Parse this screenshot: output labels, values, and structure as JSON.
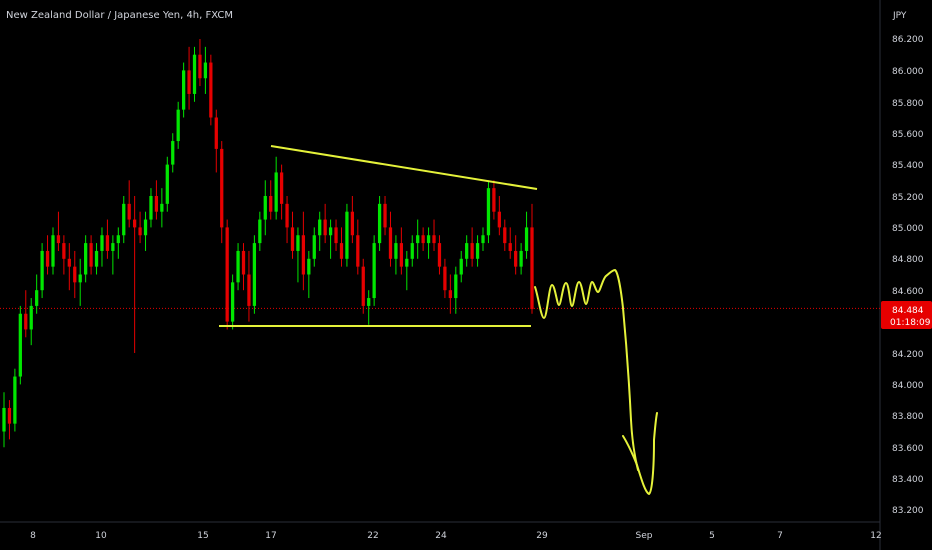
{
  "chart_data": {
    "type": "candlestick",
    "title": "New Zealand Dollar / Japanese Yen, 4h, FXCM",
    "currency": "JPY",
    "last_price": "84.484",
    "countdown": "01:18:09",
    "price_axis": {
      "ticks": [
        "86.200",
        "86.000",
        "85.800",
        "85.600",
        "85.400",
        "85.200",
        "85.000",
        "84.800",
        "84.600",
        "84.200",
        "84.000",
        "83.800",
        "83.600",
        "83.400",
        "83.200"
      ],
      "ylim": [
        83.12,
        86.4
      ]
    },
    "time_axis": {
      "ticks": [
        "8",
        "10",
        "15",
        "17",
        "22",
        "24",
        "29",
        "Sep",
        "5",
        "7",
        "12"
      ]
    },
    "colors": {
      "background": "#000000",
      "up": "#00e600",
      "down": "#e60000",
      "drawing": "#e5f23a",
      "price_tag": "#e60000",
      "axis_text": "#d1d4dc"
    },
    "bars_ohlc": [
      [
        83.7,
        83.95,
        83.6,
        83.85
      ],
      [
        83.85,
        83.9,
        83.65,
        83.75
      ],
      [
        83.75,
        84.1,
        83.7,
        84.05
      ],
      [
        84.05,
        84.5,
        84.0,
        84.45
      ],
      [
        84.45,
        84.6,
        84.3,
        84.35
      ],
      [
        84.35,
        84.55,
        84.25,
        84.5
      ],
      [
        84.5,
        84.7,
        84.45,
        84.6
      ],
      [
        84.6,
        84.9,
        84.55,
        84.85
      ],
      [
        84.85,
        84.95,
        84.7,
        84.75
      ],
      [
        84.75,
        85.0,
        84.7,
        84.95
      ],
      [
        84.95,
        85.1,
        84.85,
        84.9
      ],
      [
        84.9,
        84.95,
        84.7,
        84.8
      ],
      [
        84.8,
        84.9,
        84.6,
        84.75
      ],
      [
        84.75,
        84.85,
        84.55,
        84.65
      ],
      [
        84.65,
        84.8,
        84.5,
        84.7
      ],
      [
        84.7,
        84.95,
        84.65,
        84.9
      ],
      [
        84.9,
        84.95,
        84.7,
        84.75
      ],
      [
        84.75,
        84.9,
        84.7,
        84.85
      ],
      [
        84.85,
        85.0,
        84.75,
        84.95
      ],
      [
        84.95,
        85.05,
        84.8,
        84.85
      ],
      [
        84.85,
        84.95,
        84.7,
        84.9
      ],
      [
        84.9,
        85.0,
        84.8,
        84.95
      ],
      [
        84.95,
        85.2,
        84.9,
        85.15
      ],
      [
        85.15,
        85.3,
        85.0,
        85.05
      ],
      [
        85.05,
        85.2,
        84.2,
        85.0
      ],
      [
        85.0,
        85.1,
        84.9,
        84.95
      ],
      [
        84.95,
        85.1,
        84.85,
        85.05
      ],
      [
        85.05,
        85.25,
        85.0,
        85.2
      ],
      [
        85.2,
        85.3,
        85.05,
        85.1
      ],
      [
        85.1,
        85.25,
        85.0,
        85.15
      ],
      [
        85.15,
        85.45,
        85.1,
        85.4
      ],
      [
        85.4,
        85.6,
        85.35,
        85.55
      ],
      [
        85.55,
        85.8,
        85.5,
        85.75
      ],
      [
        85.75,
        86.05,
        85.7,
        86.0
      ],
      [
        86.0,
        86.15,
        85.75,
        85.85
      ],
      [
        85.85,
        86.15,
        85.8,
        86.1
      ],
      [
        86.1,
        86.2,
        85.9,
        85.95
      ],
      [
        85.95,
        86.15,
        85.85,
        86.05
      ],
      [
        86.05,
        86.1,
        85.65,
        85.7
      ],
      [
        85.7,
        85.75,
        85.35,
        85.5
      ],
      [
        85.5,
        85.55,
        84.9,
        85.0
      ],
      [
        85.0,
        85.05,
        84.35,
        84.4
      ],
      [
        84.4,
        84.7,
        84.35,
        84.65
      ],
      [
        84.65,
        84.9,
        84.6,
        84.85
      ],
      [
        84.85,
        84.9,
        84.6,
        84.7
      ],
      [
        84.7,
        84.85,
        84.4,
        84.5
      ],
      [
        84.5,
        84.95,
        84.45,
        84.9
      ],
      [
        84.9,
        85.1,
        84.85,
        85.05
      ],
      [
        85.05,
        85.3,
        84.95,
        85.2
      ],
      [
        85.2,
        85.3,
        85.05,
        85.1
      ],
      [
        85.1,
        85.45,
        85.05,
        85.35
      ],
      [
        85.35,
        85.4,
        85.05,
        85.15
      ],
      [
        85.15,
        85.2,
        84.9,
        85.0
      ],
      [
        85.0,
        85.1,
        84.8,
        84.85
      ],
      [
        84.85,
        85.0,
        84.65,
        84.95
      ],
      [
        84.95,
        85.1,
        84.6,
        84.7
      ],
      [
        84.7,
        84.85,
        84.55,
        84.8
      ],
      [
        84.8,
        85.0,
        84.75,
        84.95
      ],
      [
        84.95,
        85.1,
        84.85,
        85.05
      ],
      [
        85.05,
        85.15,
        84.9,
        84.95
      ],
      [
        84.95,
        85.05,
        84.8,
        85.0
      ],
      [
        85.0,
        85.05,
        84.85,
        84.9
      ],
      [
        84.9,
        85.0,
        84.75,
        84.8
      ],
      [
        84.8,
        85.15,
        84.75,
        85.1
      ],
      [
        85.1,
        85.2,
        84.9,
        84.95
      ],
      [
        84.95,
        85.05,
        84.7,
        84.75
      ],
      [
        84.75,
        84.8,
        84.45,
        84.5
      ],
      [
        84.5,
        84.6,
        84.38,
        84.55
      ],
      [
        84.55,
        84.95,
        84.5,
        84.9
      ],
      [
        84.9,
        85.2,
        84.85,
        85.15
      ],
      [
        85.15,
        85.2,
        84.95,
        85.0
      ],
      [
        85.0,
        85.1,
        84.75,
        84.8
      ],
      [
        84.8,
        84.95,
        84.7,
        84.9
      ],
      [
        84.9,
        85.0,
        84.7,
        84.75
      ],
      [
        84.75,
        84.85,
        84.6,
        84.8
      ],
      [
        84.8,
        84.95,
        84.75,
        84.9
      ],
      [
        84.9,
        85.05,
        84.8,
        84.95
      ],
      [
        84.95,
        85.0,
        84.85,
        84.9
      ],
      [
        84.9,
        85.0,
        84.8,
        84.95
      ],
      [
        84.95,
        85.05,
        84.85,
        84.9
      ],
      [
        84.9,
        84.95,
        84.7,
        84.75
      ],
      [
        84.75,
        84.8,
        84.55,
        84.6
      ],
      [
        84.6,
        84.7,
        84.45,
        84.55
      ],
      [
        84.55,
        84.75,
        84.45,
        84.7
      ],
      [
        84.7,
        84.85,
        84.65,
        84.8
      ],
      [
        84.8,
        84.95,
        84.75,
        84.9
      ],
      [
        84.9,
        85.0,
        84.75,
        84.8
      ],
      [
        84.8,
        84.95,
        84.75,
        84.9
      ],
      [
        84.9,
        85.0,
        84.85,
        84.95
      ],
      [
        84.95,
        85.3,
        84.9,
        85.25
      ],
      [
        85.25,
        85.3,
        85.05,
        85.1
      ],
      [
        85.1,
        85.2,
        84.95,
        85.0
      ],
      [
        85.0,
        85.05,
        84.85,
        84.9
      ],
      [
        84.9,
        85.0,
        84.8,
        84.85
      ],
      [
        84.85,
        84.95,
        84.7,
        84.75
      ],
      [
        84.75,
        84.9,
        84.7,
        84.85
      ],
      [
        84.85,
        85.1,
        84.8,
        85.0
      ],
      [
        85.0,
        85.15,
        84.45,
        84.48
      ]
    ]
  }
}
